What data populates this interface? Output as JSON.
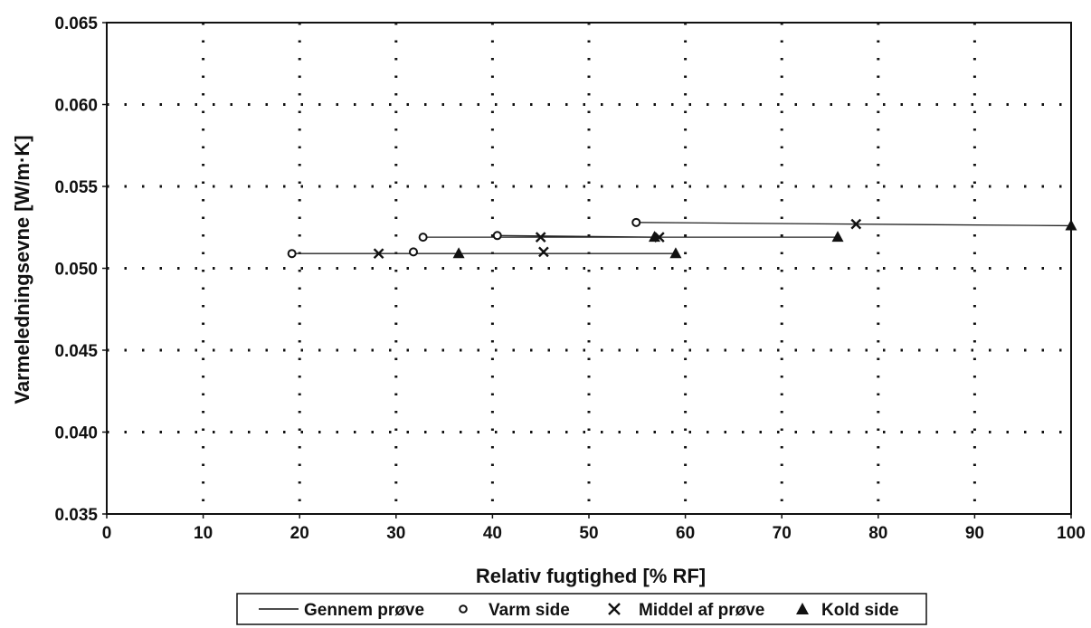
{
  "chart_data": {
    "type": "scatter",
    "title": "",
    "xlabel": "Relativ fugtighed [% RF]",
    "ylabel": "Varmeledningsevne [W/m·K]",
    "xlim": [
      0,
      100
    ],
    "ylim": [
      0.035,
      0.065
    ],
    "xticks": [
      0,
      10,
      20,
      30,
      40,
      50,
      60,
      70,
      80,
      90,
      100
    ],
    "yticks": [
      0.035,
      0.04,
      0.045,
      0.05,
      0.055,
      0.06,
      0.065
    ],
    "ytick_labels": [
      "0.035",
      "0.040",
      "0.045",
      "0.050",
      "0.055",
      "0.060",
      "0.065"
    ],
    "grid": true,
    "legend_position": "bottom",
    "series": [
      {
        "name": "Gennem prøve",
        "kind": "line",
        "segments": [
          [
            [
              19.2,
              0.0509
            ],
            [
              59.0,
              0.0509
            ]
          ],
          [
            [
              32.8,
              0.0519
            ],
            [
              75.8,
              0.0519
            ]
          ],
          [
            [
              40.5,
              0.052
            ],
            [
              57.3,
              0.0519
            ]
          ],
          [
            [
              54.9,
              0.0528
            ],
            [
              100.0,
              0.0526
            ]
          ]
        ]
      },
      {
        "name": "Varm side",
        "marker": "circle",
        "points": [
          [
            19.2,
            0.0509
          ],
          [
            31.8,
            0.051
          ],
          [
            32.8,
            0.0519
          ],
          [
            40.5,
            0.052
          ],
          [
            54.9,
            0.0528
          ]
        ]
      },
      {
        "name": "Middel af prøve",
        "marker": "x",
        "points": [
          [
            28.2,
            0.0509
          ],
          [
            45.3,
            0.051
          ],
          [
            45.0,
            0.0519
          ],
          [
            57.3,
            0.0519
          ],
          [
            77.7,
            0.0527
          ]
        ]
      },
      {
        "name": "Kold side",
        "marker": "triangle",
        "points": [
          [
            36.5,
            0.0509
          ],
          [
            59.0,
            0.0509
          ],
          [
            56.8,
            0.0519
          ],
          [
            75.8,
            0.0519
          ],
          [
            100.0,
            0.0526
          ]
        ]
      }
    ]
  }
}
